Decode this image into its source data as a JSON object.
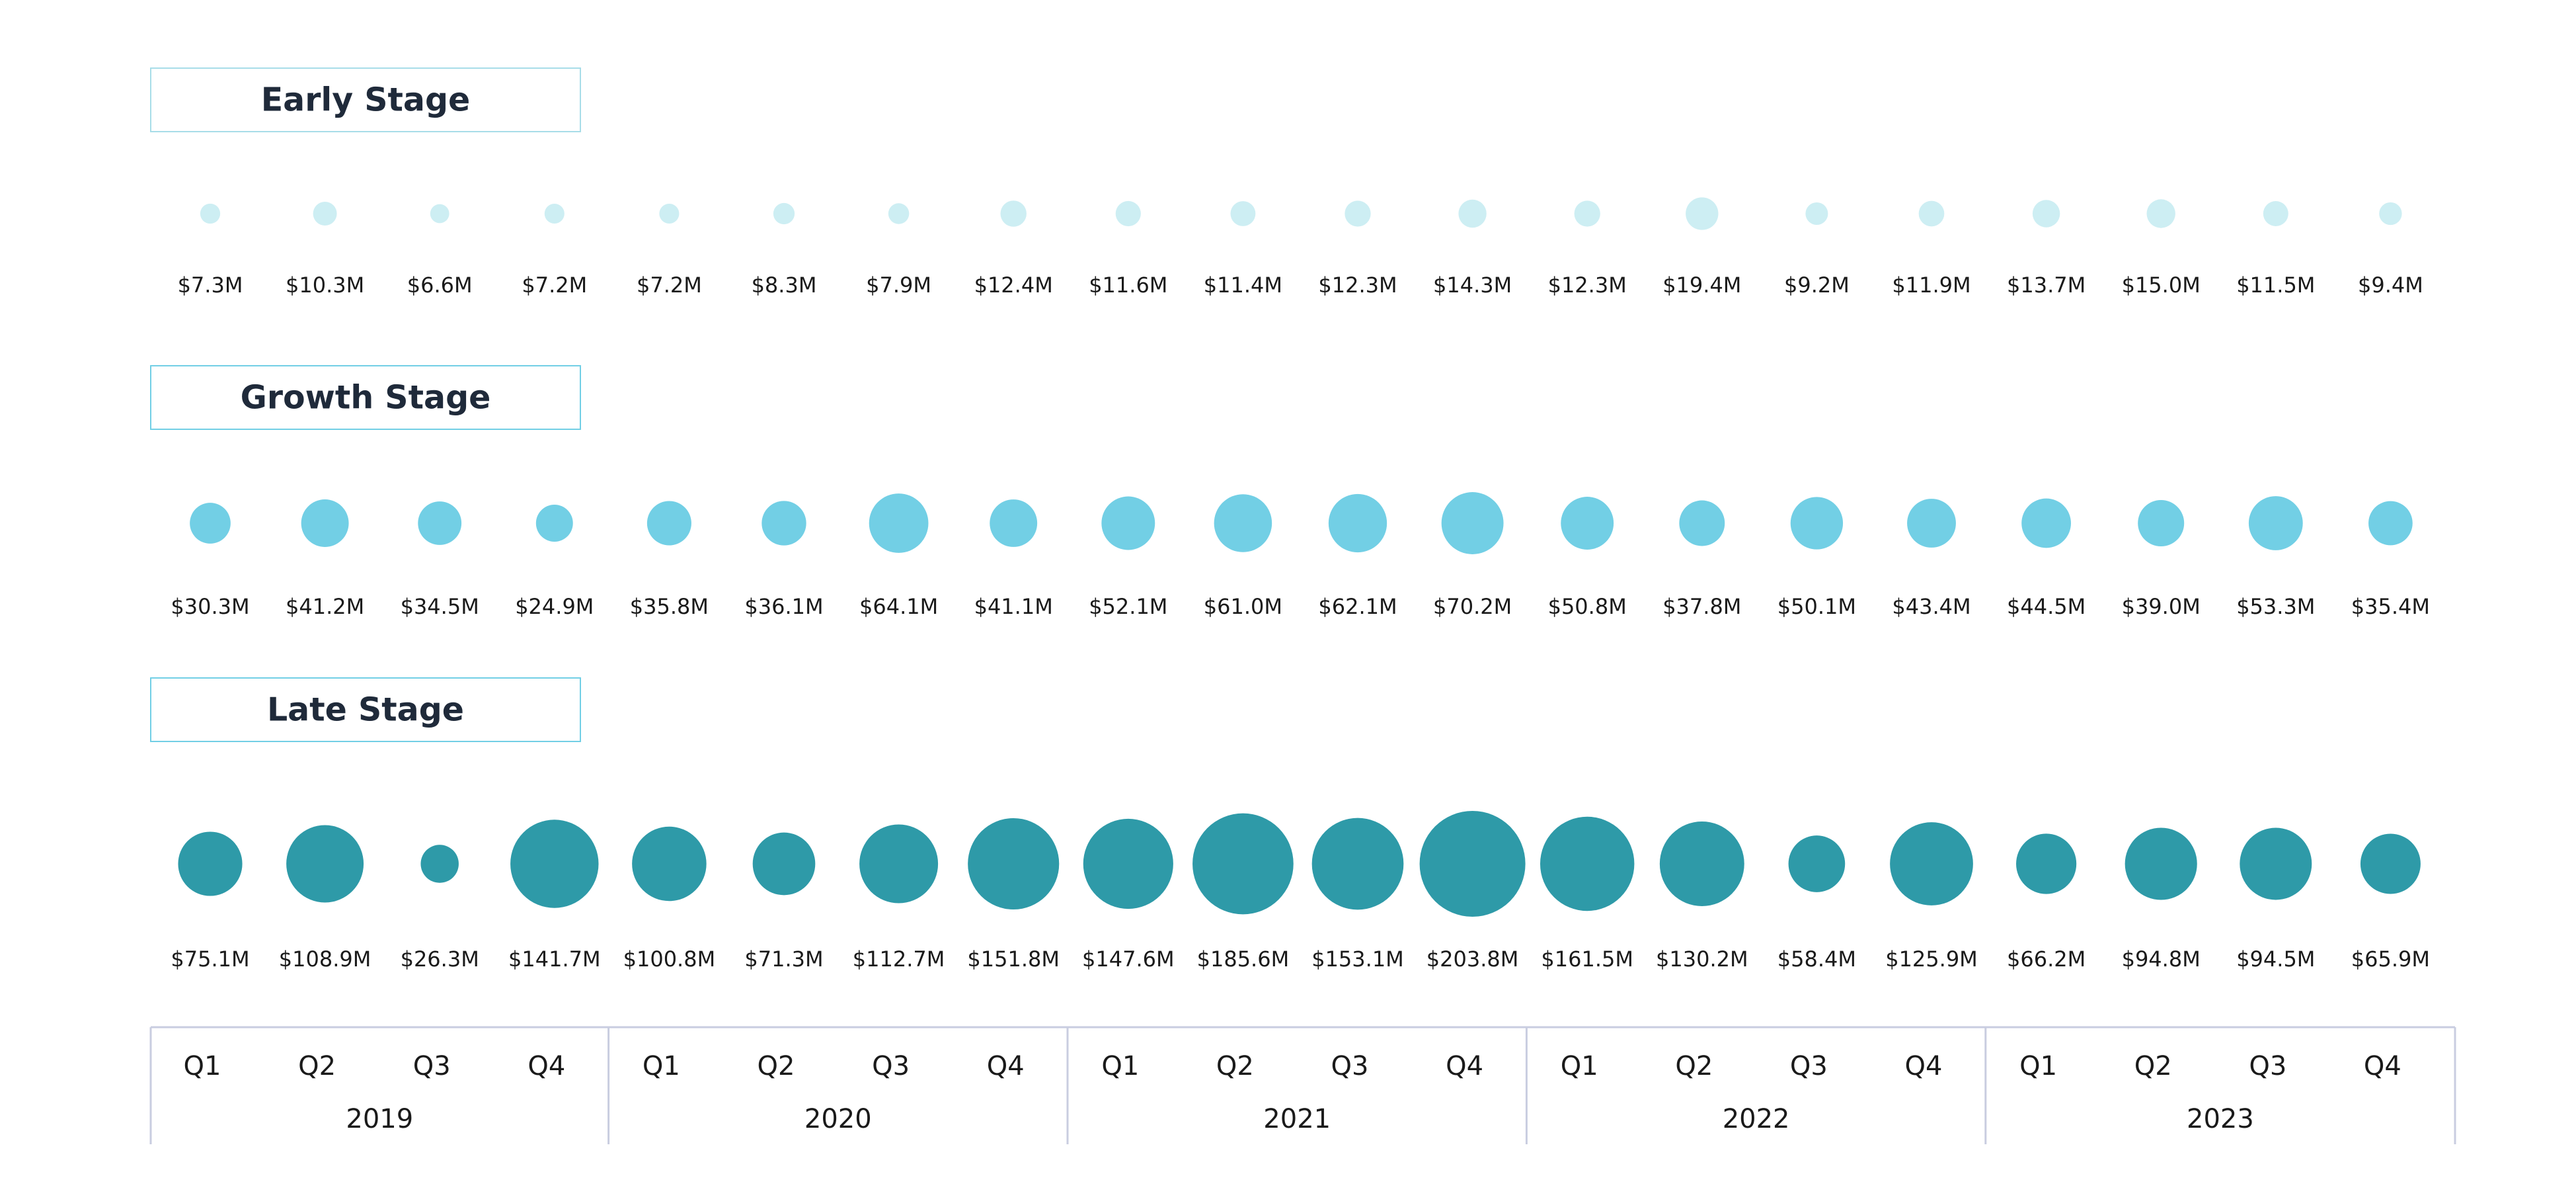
{
  "chart_data": {
    "type": "bubble",
    "quarters": [
      "Q1",
      "Q2",
      "Q3",
      "Q4",
      "Q1",
      "Q2",
      "Q3",
      "Q4",
      "Q1",
      "Q2",
      "Q3",
      "Q4",
      "Q1",
      "Q2",
      "Q3",
      "Q4",
      "Q1",
      "Q2",
      "Q3",
      "Q4"
    ],
    "years": [
      "2019",
      "2020",
      "2021",
      "2022",
      "2023"
    ],
    "series": [
      {
        "name": "Early Stage",
        "color": "#cdeef3",
        "border_color": "#a8dde8",
        "values": [
          7.3,
          10.3,
          6.6,
          7.2,
          7.2,
          8.3,
          7.9,
          12.4,
          11.6,
          11.4,
          12.3,
          14.3,
          12.3,
          19.4,
          9.2,
          11.9,
          13.7,
          15.0,
          11.5,
          9.4
        ],
        "labels": [
          "$7.3M",
          "$10.3M",
          "$6.6M",
          "$7.2M",
          "$7.2M",
          "$8.3M",
          "$7.9M",
          "$12.4M",
          "$11.6M",
          "$11.4M",
          "$12.3M",
          "$14.3M",
          "$12.3M",
          "$19.4M",
          "$9.2M",
          "$11.9M",
          "$13.7M",
          "$15.0M",
          "$11.5M",
          "$9.4M"
        ]
      },
      {
        "name": "Growth Stage",
        "color": "#72cfe5",
        "border_color": "#72cfe5",
        "values": [
          30.3,
          41.2,
          34.5,
          24.9,
          35.8,
          36.1,
          64.1,
          41.1,
          52.1,
          61.0,
          62.1,
          70.2,
          50.8,
          37.8,
          50.1,
          43.4,
          44.5,
          39.0,
          53.3,
          35.4
        ],
        "labels": [
          "$30.3M",
          "$41.2M",
          "$34.5M",
          "$24.9M",
          "$35.8M",
          "$36.1M",
          "$64.1M",
          "$41.1M",
          "$52.1M",
          "$61.0M",
          "$62.1M",
          "$70.2M",
          "$50.8M",
          "$37.8M",
          "$50.1M",
          "$43.4M",
          "$44.5M",
          "$39.0M",
          "$53.3M",
          "$35.4M"
        ]
      },
      {
        "name": "Late Stage",
        "color": "#2e9aa8",
        "border_color": "#72cfe5",
        "values": [
          75.1,
          108.9,
          26.3,
          141.7,
          100.8,
          71.3,
          112.7,
          151.8,
          147.6,
          185.6,
          153.1,
          203.8,
          161.5,
          130.2,
          58.4,
          125.9,
          66.2,
          94.8,
          94.5,
          65.9
        ],
        "labels": [
          "$75.1M",
          "$108.9M",
          "$26.3M",
          "$141.7M",
          "$100.8M",
          "$71.3M",
          "$112.7M",
          "$151.8M",
          "$147.6M",
          "$185.6M",
          "$153.1M",
          "$203.8M",
          "$161.5M",
          "$130.2M",
          "$58.4M",
          "$125.9M",
          "$66.2M",
          "$94.8M",
          "$94.5M",
          "$65.9M"
        ]
      }
    ]
  }
}
